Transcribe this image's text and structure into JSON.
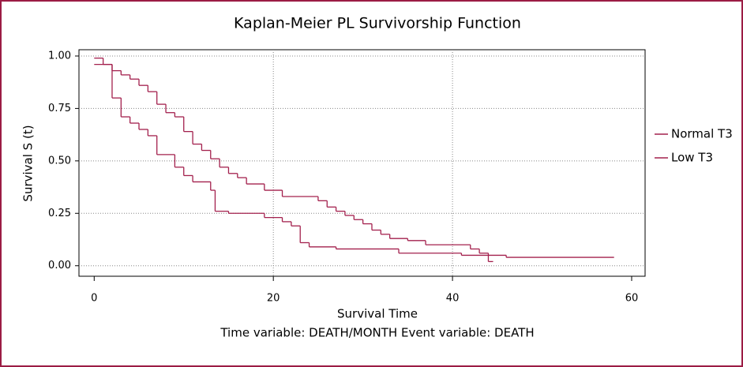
{
  "chart_data": {
    "type": "step",
    "title": "Kaplan-Meier PL Survivorship Function",
    "xlabel": "Survival Time",
    "ylabel": "Survival S (t)",
    "footnote": "Time variable: DEATH/MONTH   Event variable: DEATH",
    "xlim": [
      -1.7,
      61.5
    ],
    "xticks": [
      0,
      20,
      40,
      60
    ],
    "ylim": [
      -0.05,
      1.03
    ],
    "yticks": [
      {
        "value": 0,
        "label": "0.00"
      },
      {
        "value": 0.25,
        "label": "0.25"
      },
      {
        "value": 0.5,
        "label": "0.50"
      },
      {
        "value": 0.75,
        "label": "0.75"
      },
      {
        "value": 1,
        "label": "1.00"
      }
    ],
    "grid": true,
    "series": [
      {
        "name": "Normal T3",
        "color": "#a3204d",
        "x": [
          0,
          1,
          2,
          3,
          4,
          5,
          6,
          7,
          8,
          9,
          10,
          11,
          12,
          13,
          14,
          15,
          16,
          17,
          19,
          21,
          25,
          26,
          27,
          28,
          29,
          30,
          31,
          32,
          33,
          35,
          37,
          42,
          43,
          44,
          44.5
        ],
        "values": [
          0.99,
          0.96,
          0.93,
          0.91,
          0.89,
          0.86,
          0.83,
          0.77,
          0.73,
          0.71,
          0.64,
          0.58,
          0.55,
          0.51,
          0.47,
          0.44,
          0.42,
          0.39,
          0.36,
          0.33,
          0.31,
          0.28,
          0.26,
          0.24,
          0.22,
          0.2,
          0.17,
          0.15,
          0.13,
          0.12,
          0.1,
          0.08,
          0.06,
          0.02,
          0.02
        ]
      },
      {
        "name": "Low T3",
        "color": "#a3204d",
        "x": [
          0,
          2,
          3,
          4,
          5,
          6,
          7,
          9,
          10,
          11,
          13,
          13.5,
          15,
          19,
          21,
          22,
          23,
          24,
          27,
          34,
          41,
          46,
          58
        ],
        "values": [
          0.96,
          0.8,
          0.71,
          0.68,
          0.65,
          0.62,
          0.53,
          0.47,
          0.43,
          0.4,
          0.36,
          0.26,
          0.25,
          0.23,
          0.21,
          0.19,
          0.11,
          0.09,
          0.08,
          0.06,
          0.05,
          0.04,
          0.04
        ]
      }
    ]
  }
}
